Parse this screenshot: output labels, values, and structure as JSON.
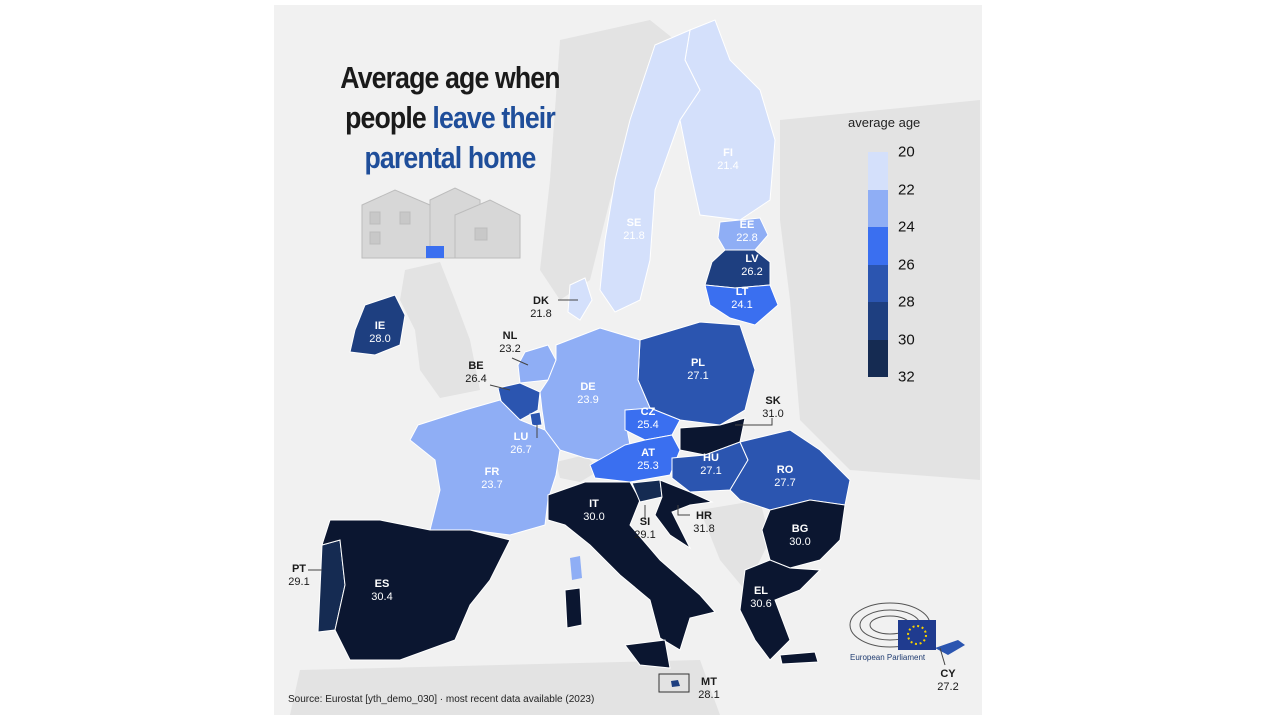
{
  "title": {
    "line1": "Average age when",
    "line2a": "people ",
    "line2b": "leave their",
    "line3": "parental home"
  },
  "legend": {
    "title": "average age",
    "ticks": [
      "20",
      "22",
      "24",
      "26",
      "28",
      "30",
      "32"
    ],
    "colors": [
      "#d4e0fb",
      "#8faef5",
      "#3a6ff0",
      "#2b55b0",
      "#1e3f80",
      "#152b52",
      "#0b1630"
    ]
  },
  "source": "Source: Eurostat [yth_demo_030]  ·  most recent data available (2023)",
  "logo_text": "European Parliament",
  "countries": [
    {
      "code": "FI",
      "value": "21.4"
    },
    {
      "code": "SE",
      "value": "21.8"
    },
    {
      "code": "EE",
      "value": "22.8"
    },
    {
      "code": "LV",
      "value": "26.2"
    },
    {
      "code": "LT",
      "value": "24.1"
    },
    {
      "code": "DK",
      "value": "21.8"
    },
    {
      "code": "IE",
      "value": "28.0"
    },
    {
      "code": "NL",
      "value": "23.2"
    },
    {
      "code": "BE",
      "value": "26.4"
    },
    {
      "code": "PL",
      "value": "27.1"
    },
    {
      "code": "DE",
      "value": "23.9"
    },
    {
      "code": "CZ",
      "value": "25.4"
    },
    {
      "code": "SK",
      "value": "31.0"
    },
    {
      "code": "LU",
      "value": "26.7"
    },
    {
      "code": "AT",
      "value": "25.3"
    },
    {
      "code": "HU",
      "value": "27.1"
    },
    {
      "code": "RO",
      "value": "27.7"
    },
    {
      "code": "FR",
      "value": "23.7"
    },
    {
      "code": "IT",
      "value": "30.0"
    },
    {
      "code": "SI",
      "value": "29.1"
    },
    {
      "code": "HR",
      "value": "31.8"
    },
    {
      "code": "BG",
      "value": "30.0"
    },
    {
      "code": "PT",
      "value": "29.1"
    },
    {
      "code": "ES",
      "value": "30.4"
    },
    {
      "code": "EL",
      "value": "30.6"
    },
    {
      "code": "MT",
      "value": "28.1"
    },
    {
      "code": "CY",
      "value": "27.2"
    }
  ]
}
